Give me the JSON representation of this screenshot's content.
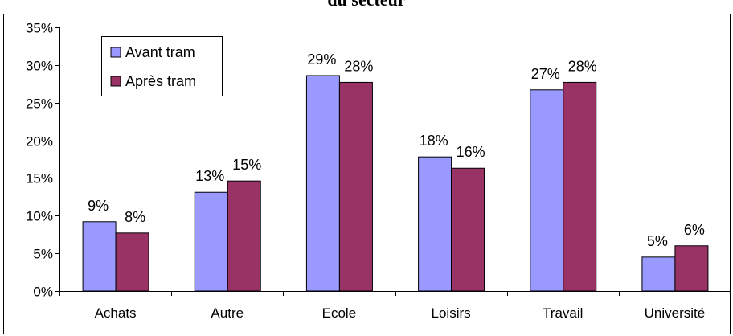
{
  "chart_data": {
    "type": "bar",
    "title": "du secteur",
    "categories": [
      "Achats",
      "Autre",
      "Ecole",
      "Loisirs",
      "Travail",
      "Université"
    ],
    "series": [
      {
        "name": "Avant tram",
        "color": "#9999ff",
        "values": [
          9.2,
          13.1,
          28.6,
          17.8,
          26.7,
          4.5
        ],
        "labels": [
          "9%",
          "13%",
          "29%",
          "18%",
          "27%",
          "5%"
        ]
      },
      {
        "name": "Après tram",
        "color": "#993366",
        "values": [
          7.7,
          14.6,
          27.7,
          16.3,
          27.7,
          6.0
        ],
        "labels": [
          "8%",
          "15%",
          "28%",
          "16%",
          "28%",
          "6%"
        ]
      }
    ],
    "ylim": [
      0,
      35
    ],
    "yticks": [
      "0%",
      "5%",
      "10%",
      "15%",
      "20%",
      "25%",
      "30%",
      "35%"
    ],
    "grid": false,
    "legend": "top-left"
  }
}
